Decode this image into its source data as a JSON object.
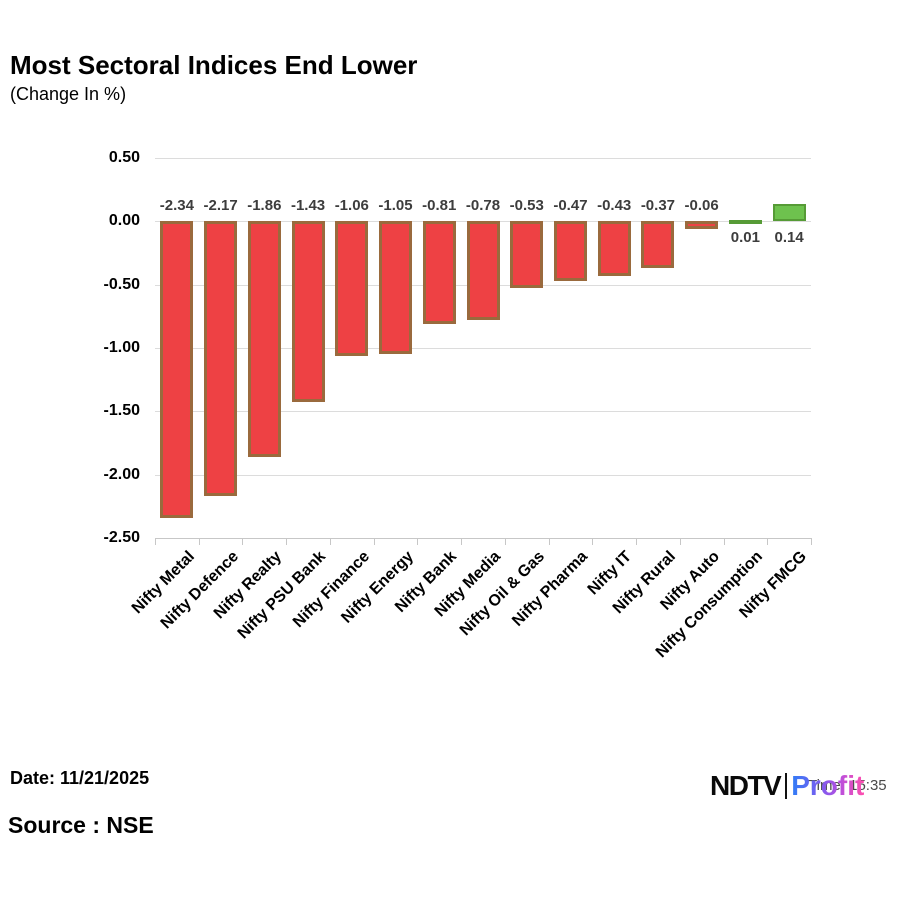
{
  "title": "Most Sectoral Indices End Lower",
  "subtitle": "(Change In %)",
  "chart_data": {
    "type": "bar",
    "title": "Most Sectoral Indices End Lower",
    "xlabel": "",
    "ylabel": "Change In %",
    "categories": [
      "Nifty Metal",
      "Nifty Defence",
      "Nifty Realty",
      "Nifty PSU Bank",
      "Nifty Finance",
      "Nifty Energy",
      "Nifty Bank",
      "Nifty Media",
      "Nifty Oil & Gas",
      "Nifty Pharma",
      "Nifty IT",
      "Nifty Rural",
      "Nifty Auto",
      "Nifty Consumption",
      "Nifty FMCG"
    ],
    "values": [
      -2.34,
      -2.17,
      -1.86,
      -1.43,
      -1.06,
      -1.05,
      -0.81,
      -0.78,
      -0.53,
      -0.47,
      -0.43,
      -0.37,
      -0.06,
      0.01,
      0.14
    ],
    "value_labels": [
      "-2.34",
      "-2.17",
      "-1.86",
      "-1.43",
      "-1.06",
      "-1.05",
      "-0.81",
      "-0.78",
      "-0.53",
      "-0.47",
      "-0.43",
      "-0.37",
      "-0.06",
      "0.01",
      "0.14"
    ],
    "ylim": [
      -2.5,
      0.5
    ],
    "yticks": [
      0.5,
      0,
      -0.5,
      -1,
      -1.5,
      -2,
      -2.5
    ],
    "ytick_labels": [
      "0.50",
      "0.00",
      "-0.50",
      "-1.00",
      "-1.50",
      "-2.00",
      "-2.50"
    ],
    "grid": true,
    "legend": "none",
    "colors": {
      "negative_fill": "#ee4144",
      "negative_border": "#9a6a3d",
      "positive_fill": "#6ec24e",
      "positive_border": "#569b36",
      "gridline": "#dcdcdc",
      "label_text": "#3d3d3d"
    }
  },
  "footer": {
    "date_label": "Date: 11/21/2025",
    "source_label": "Source : NSE"
  },
  "logo": {
    "ndtv": "NDTV",
    "profit": "Profit",
    "ghost_time": "Time: 15:35"
  }
}
